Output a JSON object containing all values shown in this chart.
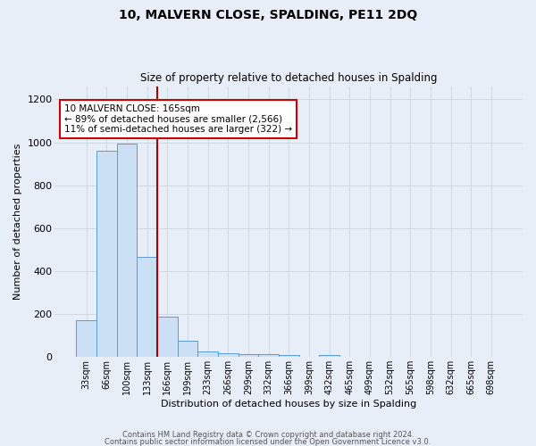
{
  "title": "10, MALVERN CLOSE, SPALDING, PE11 2DQ",
  "subtitle": "Size of property relative to detached houses in Spalding",
  "xlabel": "Distribution of detached houses by size in Spalding",
  "ylabel": "Number of detached properties",
  "footer_line1": "Contains HM Land Registry data © Crown copyright and database right 2024.",
  "footer_line2": "Contains public sector information licensed under the Open Government Licence v3.0.",
  "bar_labels": [
    "33sqm",
    "66sqm",
    "100sqm",
    "133sqm",
    "166sqm",
    "199sqm",
    "233sqm",
    "266sqm",
    "299sqm",
    "332sqm",
    "366sqm",
    "399sqm",
    "432sqm",
    "465sqm",
    "499sqm",
    "532sqm",
    "565sqm",
    "598sqm",
    "632sqm",
    "665sqm",
    "698sqm"
  ],
  "bar_values": [
    170,
    960,
    995,
    465,
    185,
    75,
    25,
    15,
    12,
    10,
    8,
    0,
    8,
    0,
    0,
    0,
    0,
    0,
    0,
    0,
    0
  ],
  "bar_color": "#cce0f5",
  "bar_edge_color": "#5b9bd5",
  "grid_color": "#d0d8e4",
  "background_color": "#e8eef8",
  "vline_color": "#aa0000",
  "vline_pos": 3.5,
  "annotation_title": "10 MALVERN CLOSE: 165sqm",
  "annotation_line1": "← 89% of detached houses are smaller (2,566)",
  "annotation_line2": "11% of semi-detached houses are larger (322) →",
  "annotation_box_color": "#ffffff",
  "annotation_box_edge": "#cc0000",
  "ylim": [
    0,
    1260
  ],
  "yticks": [
    0,
    200,
    400,
    600,
    800,
    1000,
    1200
  ]
}
